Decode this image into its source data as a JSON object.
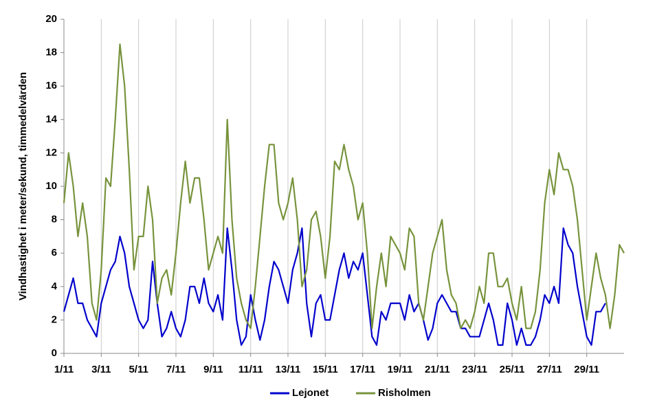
{
  "chart_data": {
    "type": "line",
    "y_label": "Vindhastighet i meter/sekund, timmedelvärden",
    "x": [
      0,
      0.25,
      0.5,
      0.75,
      1,
      1.25,
      1.5,
      1.75,
      2,
      2.25,
      2.5,
      2.75,
      3,
      3.25,
      3.5,
      3.75,
      4,
      4.25,
      4.5,
      4.75,
      5,
      5.25,
      5.5,
      5.75,
      6,
      6.25,
      6.5,
      6.75,
      7,
      7.25,
      7.5,
      7.75,
      8,
      8.25,
      8.5,
      8.75,
      9,
      9.25,
      9.5,
      9.75,
      10,
      10.25,
      10.5,
      10.75,
      11,
      11.25,
      11.5,
      11.75,
      12,
      12.25,
      12.5,
      12.75,
      13,
      13.25,
      13.5,
      13.75,
      14,
      14.25,
      14.5,
      14.75,
      15,
      15.25,
      15.5,
      15.75,
      16,
      16.25,
      16.5,
      16.75,
      17,
      17.25,
      17.5,
      17.75,
      18,
      18.25,
      18.5,
      18.75,
      19,
      19.25,
      19.5,
      19.75,
      20,
      20.25,
      20.5,
      20.75,
      21,
      21.25,
      21.5,
      21.75,
      22,
      22.25,
      22.5,
      22.75,
      23,
      23.25,
      23.5,
      23.75,
      24,
      24.25,
      24.5,
      24.75,
      25,
      25.25,
      25.5,
      25.75,
      26,
      26.25,
      26.5,
      26.75,
      27,
      27.25,
      27.5,
      27.75,
      28,
      28.25,
      28.5,
      28.75,
      29,
      29.25,
      29.5,
      29.75,
      30
    ],
    "series": [
      {
        "name": "Lejonet",
        "color": "#0000cc",
        "values": [
          2.5,
          3.5,
          4.5,
          3,
          3,
          2,
          1.5,
          1,
          3,
          4,
          5,
          5.5,
          7,
          6,
          4,
          3,
          2,
          1.5,
          2,
          5.5,
          3,
          1,
          1.5,
          2.5,
          1.5,
          1,
          2,
          4,
          4,
          3,
          4.5,
          3,
          2.5,
          3.5,
          2,
          7.5,
          5,
          2,
          0.5,
          1,
          3.5,
          2,
          0.8,
          2,
          4,
          5.5,
          5,
          4,
          3,
          5,
          6,
          7.5,
          3,
          1,
          3,
          3.5,
          2,
          2,
          3.5,
          5,
          6,
          4.5,
          5.5,
          5,
          6,
          3.5,
          1,
          0.5,
          2.5,
          2,
          3,
          3,
          3,
          2,
          3.5,
          2.5,
          3,
          2,
          0.8,
          1.5,
          3,
          3.5,
          3,
          2.5,
          2.5,
          1.5,
          1.5,
          1,
          1,
          1,
          2,
          3,
          2,
          0.5,
          0.5,
          3,
          2,
          0.5,
          1.5,
          0.5,
          0.5,
          1,
          2,
          3.5,
          3,
          4,
          3,
          7.5,
          6.5,
          6,
          4,
          2.5,
          1,
          0.5,
          2.5,
          2.5,
          3,
          null,
          null,
          null,
          null
        ]
      },
      {
        "name": "Risholmen",
        "color": "#77933c",
        "values": [
          9,
          12,
          10,
          7,
          9,
          7,
          3,
          2,
          5,
          10.5,
          10,
          14,
          18.5,
          16,
          11,
          5,
          7,
          7,
          10,
          8,
          3,
          4.5,
          5,
          3.5,
          6,
          9,
          11.5,
          9,
          10.5,
          10.5,
          8,
          5,
          6,
          7,
          6,
          14,
          8,
          4.5,
          3,
          2,
          1.5,
          4,
          7,
          10,
          12.5,
          12.5,
          9,
          8,
          9,
          10.5,
          8,
          4,
          5,
          8,
          8.5,
          7,
          4.5,
          7,
          11.5,
          11,
          12.5,
          11,
          10,
          8,
          9,
          6,
          1.5,
          4,
          6,
          4,
          7,
          6.5,
          6,
          5,
          7.5,
          7,
          3,
          2,
          4,
          6,
          7,
          8,
          5,
          3.5,
          3,
          1.5,
          2,
          1.5,
          2.5,
          4,
          3,
          6,
          6,
          4,
          4,
          4.5,
          3,
          2,
          4,
          1.5,
          1.5,
          2.5,
          5,
          9,
          11,
          9.5,
          12,
          11,
          11,
          10,
          8,
          5,
          2,
          4,
          6,
          4.5,
          3.5,
          1.5,
          3.5,
          6.5,
          6
        ]
      }
    ],
    "xlim": [
      0,
      30
    ],
    "xticks": [
      {
        "value": 0,
        "label": "1/11"
      },
      {
        "value": 2,
        "label": "3/11"
      },
      {
        "value": 4,
        "label": "5/11"
      },
      {
        "value": 6,
        "label": "7/11"
      },
      {
        "value": 8,
        "label": "9/11"
      },
      {
        "value": 10,
        "label": "11/11"
      },
      {
        "value": 12,
        "label": "13/11"
      },
      {
        "value": 14,
        "label": "15/11"
      },
      {
        "value": 16,
        "label": "17/11"
      },
      {
        "value": 18,
        "label": "19/11"
      },
      {
        "value": 20,
        "label": "21/11"
      },
      {
        "value": 22,
        "label": "23/11"
      },
      {
        "value": 24,
        "label": "25/11"
      },
      {
        "value": 26,
        "label": "27/11"
      },
      {
        "value": 28,
        "label": "29/11"
      }
    ],
    "ylim": [
      0,
      20
    ],
    "yticks": [
      0,
      2,
      4,
      6,
      8,
      10,
      12,
      14,
      16,
      18,
      20
    ],
    "grid": "x",
    "legend": "bottom"
  }
}
